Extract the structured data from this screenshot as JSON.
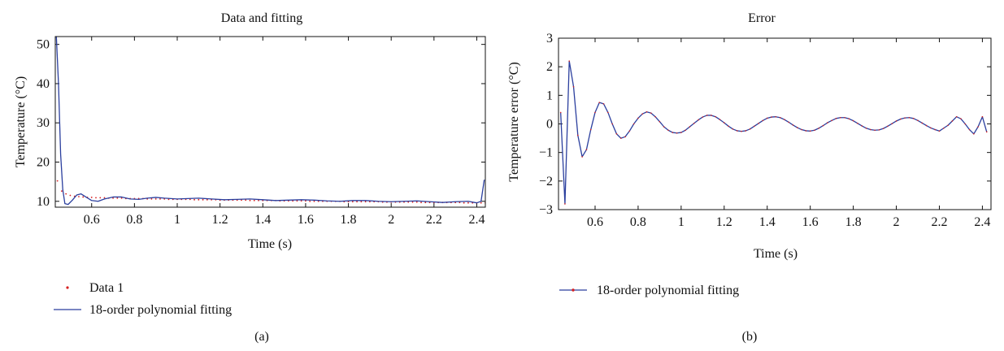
{
  "panels": [
    {
      "caption": "(a)",
      "legend": [
        {
          "label": "Data 1",
          "style": "dots"
        },
        {
          "label": "18-order polynomial fitting",
          "style": "line"
        }
      ]
    },
    {
      "caption": "(b)",
      "legend": [
        {
          "label": "18-order polynomial fitting",
          "style": "line-with-dots"
        }
      ]
    }
  ],
  "chart_data": [
    {
      "type": "line",
      "title": "Data and fitting",
      "xlabel": "Time (s)",
      "ylabel": "Temperature (°C)",
      "xlim": [
        0.43,
        2.44
      ],
      "ylim": [
        8.5,
        52
      ],
      "xticks": [
        0.6,
        0.8,
        1,
        1.2,
        1.4,
        1.6,
        1.8,
        2,
        2.2,
        2.4
      ],
      "xtick_labels": [
        "0.6",
        "0.8",
        "1",
        "1.2",
        "1.4",
        "1.6",
        "1.8",
        "2",
        "2.2",
        "2.4"
      ],
      "yticks": [
        10,
        20,
        30,
        40,
        50
      ],
      "ytick_labels": [
        "10",
        "20",
        "30",
        "40",
        "50"
      ],
      "grid": false,
      "series": [
        {
          "name": "Data 1",
          "style": "dots",
          "color": "#d62020",
          "x": [
            0.44,
            0.46,
            0.48,
            0.5,
            0.52,
            0.54,
            0.56,
            0.58,
            0.6,
            0.62,
            0.64,
            0.66,
            0.68,
            0.7,
            0.72,
            0.74,
            0.76,
            0.78,
            0.8,
            0.82,
            0.84,
            0.86,
            0.88,
            0.9,
            0.92,
            0.94,
            0.96,
            0.98,
            1.0,
            1.02,
            1.04,
            1.06,
            1.08,
            1.1,
            1.12,
            1.14,
            1.16,
            1.18,
            1.2,
            1.22,
            1.24,
            1.26,
            1.28,
            1.3,
            1.32,
            1.34,
            1.36,
            1.38,
            1.4,
            1.42,
            1.44,
            1.46,
            1.48,
            1.5,
            1.52,
            1.54,
            1.56,
            1.58,
            1.6,
            1.62,
            1.64,
            1.66,
            1.68,
            1.7,
            1.72,
            1.74,
            1.76,
            1.78,
            1.8,
            1.82,
            1.84,
            1.86,
            1.88,
            1.9,
            1.92,
            1.94,
            1.96,
            1.98,
            2.0,
            2.02,
            2.04,
            2.06,
            2.08,
            2.1,
            2.12,
            2.14,
            2.16,
            2.18,
            2.2,
            2.22,
            2.24,
            2.26,
            2.28,
            2.3,
            2.32,
            2.34,
            2.36,
            2.38,
            2.4,
            2.42,
            2.44
          ],
          "values": [
            15.2,
            12.6,
            11.9,
            11.5,
            11.3,
            11.2,
            11.1,
            11.0,
            11.0,
            10.9,
            10.9,
            10.9,
            10.8,
            10.8,
            10.8,
            10.8,
            10.7,
            10.7,
            10.7,
            10.7,
            10.7,
            10.6,
            10.6,
            10.6,
            10.6,
            10.6,
            10.5,
            10.5,
            10.5,
            10.5,
            10.5,
            10.5,
            10.4,
            10.4,
            10.4,
            10.4,
            10.4,
            10.4,
            10.3,
            10.3,
            10.3,
            10.3,
            10.3,
            10.3,
            10.3,
            10.2,
            10.2,
            10.2,
            10.2,
            10.2,
            10.2,
            10.2,
            10.1,
            10.1,
            10.1,
            10.1,
            10.1,
            10.1,
            10.1,
            10.0,
            10.0,
            10.0,
            10.0,
            10.0,
            10.0,
            10.0,
            10.0,
            9.9,
            9.9,
            9.9,
            9.9,
            9.9,
            9.9,
            9.9,
            9.9,
            9.9,
            9.8,
            9.8,
            9.8,
            9.8,
            9.8,
            9.8,
            9.8,
            9.8,
            9.8,
            9.7,
            9.7,
            9.7,
            9.7,
            9.7,
            9.7,
            9.7,
            9.7,
            9.7,
            9.7,
            9.6,
            9.6,
            9.6,
            9.6,
            9.6,
            9.6
          ]
        },
        {
          "name": "18-order polynomial fitting",
          "style": "line",
          "color": "#2b3f9e",
          "x": [
            0.435,
            0.445,
            0.455,
            0.465,
            0.475,
            0.49,
            0.51,
            0.53,
            0.55,
            0.57,
            0.6,
            0.63,
            0.66,
            0.7,
            0.74,
            0.78,
            0.82,
            0.86,
            0.9,
            0.94,
            1.0,
            1.05,
            1.1,
            1.16,
            1.22,
            1.28,
            1.34,
            1.4,
            1.46,
            1.52,
            1.58,
            1.64,
            1.7,
            1.76,
            1.82,
            1.88,
            1.94,
            2.0,
            2.06,
            2.12,
            2.18,
            2.24,
            2.3,
            2.36,
            2.4,
            2.42,
            2.435
          ],
          "values": [
            52.0,
            40.0,
            22.0,
            13.0,
            9.4,
            9.2,
            10.3,
            11.6,
            11.9,
            11.2,
            10.2,
            10.0,
            10.6,
            11.1,
            11.1,
            10.6,
            10.5,
            10.8,
            11.0,
            10.8,
            10.6,
            10.7,
            10.8,
            10.6,
            10.4,
            10.5,
            10.6,
            10.4,
            10.2,
            10.3,
            10.4,
            10.3,
            10.1,
            10.0,
            10.2,
            10.2,
            10.0,
            9.9,
            10.0,
            10.1,
            9.9,
            9.7,
            9.9,
            10.0,
            9.6,
            10.0,
            15.5
          ]
        }
      ]
    },
    {
      "type": "line",
      "title": "Error",
      "xlabel": "Time (s)",
      "ylabel": "Temperature error (°C)",
      "xlim": [
        0.43,
        2.44
      ],
      "ylim": [
        -3,
        3
      ],
      "xticks": [
        0.6,
        0.8,
        1,
        1.2,
        1.4,
        1.6,
        1.8,
        2,
        2.2,
        2.4
      ],
      "xtick_labels": [
        "0.6",
        "0.8",
        "1",
        "1.2",
        "1.4",
        "1.6",
        "1.8",
        "2",
        "2.2",
        "2.4"
      ],
      "yticks": [
        -3,
        -2,
        -1,
        0,
        1,
        2,
        3
      ],
      "ytick_labels": [
        "−3",
        "−2",
        "−1",
        "0",
        "1",
        "2",
        "3"
      ],
      "grid": false,
      "series": [
        {
          "name": "18-order polynomial fitting",
          "style": "line-with-dots",
          "color": "#2b3f9e",
          "marker_color": "#d62020",
          "x": [
            0.44,
            0.46,
            0.48,
            0.5,
            0.52,
            0.54,
            0.56,
            0.58,
            0.6,
            0.62,
            0.64,
            0.66,
            0.68,
            0.7,
            0.72,
            0.74,
            0.76,
            0.78,
            0.8,
            0.82,
            0.84,
            0.86,
            0.88,
            0.9,
            0.92,
            0.94,
            0.96,
            0.98,
            1.0,
            1.02,
            1.04,
            1.06,
            1.08,
            1.1,
            1.12,
            1.14,
            1.16,
            1.18,
            1.2,
            1.22,
            1.24,
            1.26,
            1.28,
            1.3,
            1.32,
            1.34,
            1.36,
            1.38,
            1.4,
            1.42,
            1.44,
            1.46,
            1.48,
            1.5,
            1.52,
            1.54,
            1.56,
            1.58,
            1.6,
            1.62,
            1.64,
            1.66,
            1.68,
            1.7,
            1.72,
            1.74,
            1.76,
            1.78,
            1.8,
            1.82,
            1.84,
            1.86,
            1.88,
            1.9,
            1.92,
            1.94,
            1.96,
            1.98,
            2.0,
            2.02,
            2.04,
            2.06,
            2.08,
            2.1,
            2.12,
            2.14,
            2.16,
            2.18,
            2.2,
            2.22,
            2.24,
            2.26,
            2.28,
            2.3,
            2.32,
            2.34,
            2.36,
            2.38,
            2.4,
            2.42
          ],
          "values": [
            0.4,
            -2.8,
            2.2,
            1.3,
            -0.4,
            -1.15,
            -0.9,
            -0.2,
            0.4,
            0.75,
            0.7,
            0.4,
            0.0,
            -0.35,
            -0.5,
            -0.45,
            -0.25,
            0.0,
            0.2,
            0.35,
            0.42,
            0.38,
            0.25,
            0.08,
            -0.1,
            -0.22,
            -0.3,
            -0.32,
            -0.3,
            -0.22,
            -0.1,
            0.02,
            0.14,
            0.24,
            0.3,
            0.3,
            0.25,
            0.15,
            0.04,
            -0.08,
            -0.18,
            -0.24,
            -0.26,
            -0.24,
            -0.18,
            -0.08,
            0.02,
            0.12,
            0.2,
            0.24,
            0.25,
            0.22,
            0.15,
            0.06,
            -0.04,
            -0.13,
            -0.2,
            -0.24,
            -0.25,
            -0.22,
            -0.15,
            -0.06,
            0.04,
            0.12,
            0.19,
            0.22,
            0.22,
            0.18,
            0.11,
            0.02,
            -0.07,
            -0.15,
            -0.2,
            -0.22,
            -0.21,
            -0.16,
            -0.08,
            0.01,
            0.1,
            0.17,
            0.21,
            0.22,
            0.19,
            0.12,
            0.03,
            -0.06,
            -0.14,
            -0.2,
            -0.25,
            -0.15,
            -0.05,
            0.1,
            0.25,
            0.18,
            0.0,
            -0.2,
            -0.35,
            -0.1,
            0.25,
            -0.28
          ]
        }
      ]
    }
  ]
}
